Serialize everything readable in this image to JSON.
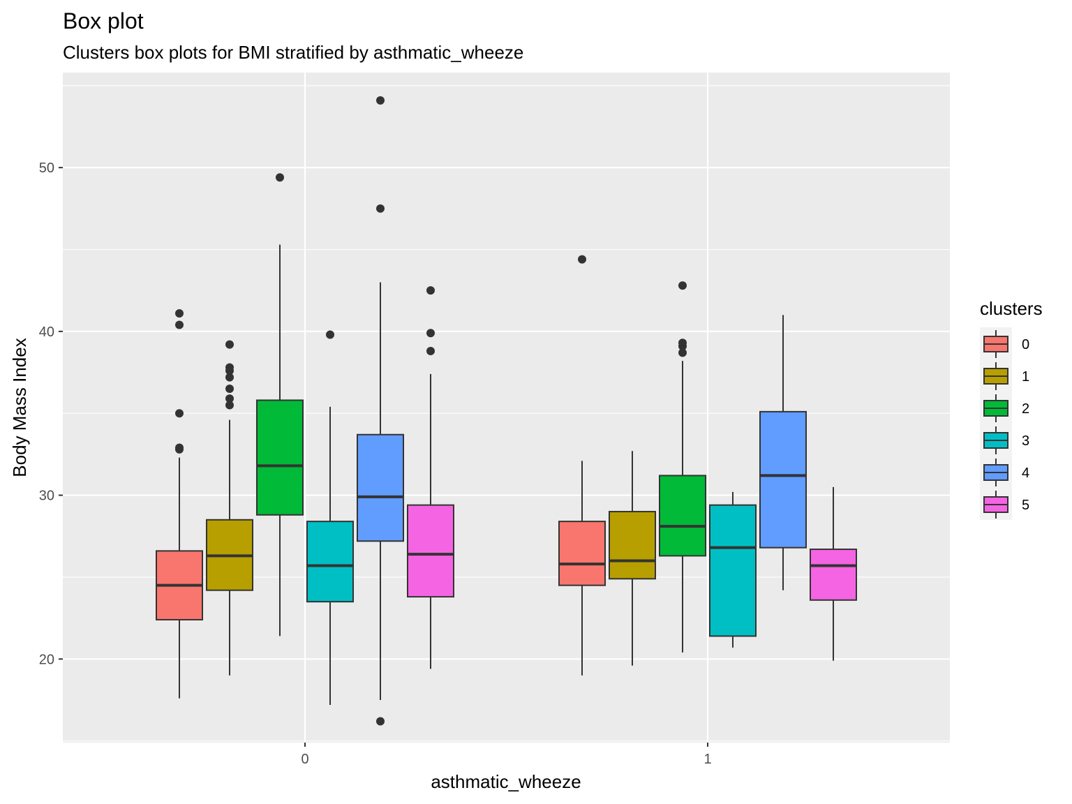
{
  "chart_data": {
    "type": "box",
    "title": "Box plot",
    "subtitle": "Clusters box plots for BMI stratified by asthmatic_wheeze",
    "xlabel": "asthmatic_wheeze",
    "ylabel": "Body Mass Index",
    "categories": [
      "0",
      "1"
    ],
    "ylim": [
      14.9,
      55.8
    ],
    "y_ticks": [
      20,
      30,
      40,
      50
    ],
    "grid": true,
    "legend_position": "right",
    "legend": {
      "title": "clusters",
      "entries": [
        {
          "label": "0",
          "color": "#F8766D"
        },
        {
          "label": "1",
          "color": "#B79F00"
        },
        {
          "label": "2",
          "color": "#00BA38"
        },
        {
          "label": "3",
          "color": "#00BFC4"
        },
        {
          "label": "4",
          "color": "#619CFF"
        },
        {
          "label": "5",
          "color": "#F564E3"
        }
      ]
    },
    "series": [
      {
        "name": "0",
        "color": "#F8766D",
        "boxes": [
          {
            "category": "0",
            "whisker_low": 17.6,
            "q1": 22.4,
            "median": 24.5,
            "q3": 26.6,
            "whisker_high": 32.3,
            "outliers": [
              32.8,
              32.9,
              35.0,
              40.4,
              41.1
            ]
          },
          {
            "category": "1",
            "whisker_low": 19.0,
            "q1": 24.5,
            "median": 25.8,
            "q3": 28.4,
            "whisker_high": 32.1,
            "outliers": [
              44.4
            ]
          }
        ]
      },
      {
        "name": "1",
        "color": "#B79F00",
        "boxes": [
          {
            "category": "0",
            "whisker_low": 19.0,
            "q1": 24.2,
            "median": 26.3,
            "q3": 28.5,
            "whisker_high": 34.6,
            "outliers": [
              35.5,
              35.9,
              36.5,
              37.2,
              37.6,
              37.8,
              39.2
            ]
          },
          {
            "category": "1",
            "whisker_low": 19.6,
            "q1": 24.9,
            "median": 26.0,
            "q3": 29.0,
            "whisker_high": 32.7,
            "outliers": []
          }
        ]
      },
      {
        "name": "2",
        "color": "#00BA38",
        "boxes": [
          {
            "category": "0",
            "whisker_low": 21.4,
            "q1": 28.8,
            "median": 31.8,
            "q3": 35.8,
            "whisker_high": 45.3,
            "outliers": [
              49.4
            ]
          },
          {
            "category": "1",
            "whisker_low": 20.4,
            "q1": 26.3,
            "median": 28.1,
            "q3": 31.2,
            "whisker_high": 38.2,
            "outliers": [
              38.7,
              39.1,
              39.3,
              42.8
            ]
          }
        ]
      },
      {
        "name": "3",
        "color": "#00BFC4",
        "boxes": [
          {
            "category": "0",
            "whisker_low": 17.2,
            "q1": 23.5,
            "median": 25.7,
            "q3": 28.4,
            "whisker_high": 35.4,
            "outliers": [
              39.8
            ]
          },
          {
            "category": "1",
            "whisker_low": 20.7,
            "q1": 21.4,
            "median": 26.8,
            "q3": 29.4,
            "whisker_high": 30.2,
            "outliers": []
          }
        ]
      },
      {
        "name": "4",
        "color": "#619CFF",
        "boxes": [
          {
            "category": "0",
            "whisker_low": 17.5,
            "q1": 27.2,
            "median": 29.9,
            "q3": 33.7,
            "whisker_high": 43.0,
            "outliers": [
              16.2,
              47.5,
              54.1
            ]
          },
          {
            "category": "1",
            "whisker_low": 24.2,
            "q1": 26.8,
            "median": 31.2,
            "q3": 35.1,
            "whisker_high": 41.0,
            "outliers": []
          }
        ]
      },
      {
        "name": "5",
        "color": "#F564E3",
        "boxes": [
          {
            "category": "0",
            "whisker_low": 19.4,
            "q1": 23.8,
            "median": 26.4,
            "q3": 29.4,
            "whisker_high": 37.4,
            "outliers": [
              38.8,
              39.9,
              42.5
            ]
          },
          {
            "category": "1",
            "whisker_low": 19.9,
            "q1": 23.6,
            "median": 25.7,
            "q3": 26.7,
            "whisker_high": 30.5,
            "outliers": []
          }
        ]
      }
    ]
  }
}
